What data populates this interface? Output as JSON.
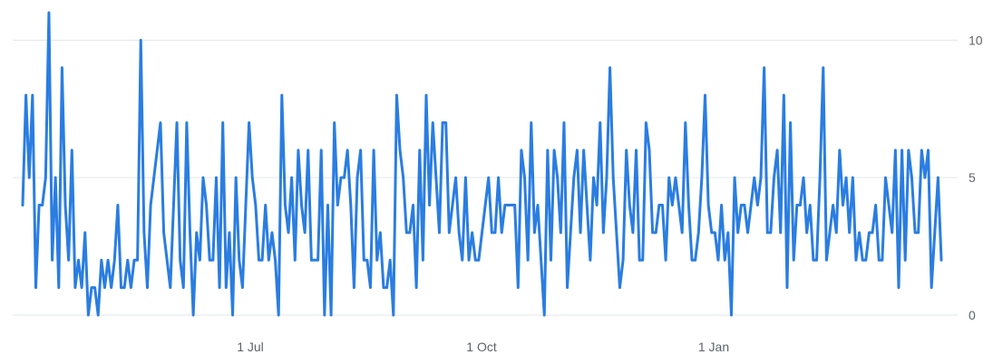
{
  "chart_data": {
    "type": "line",
    "title": "",
    "xlabel": "",
    "ylabel": "",
    "x_tick_labels": [
      "1 Jul",
      "1 Oct",
      "1 Jan"
    ],
    "y_ticks": [
      0,
      5,
      10
    ],
    "ylim": [
      0,
      11
    ],
    "grid": true,
    "y_axis_side": "right",
    "line_color": "#2a7de1",
    "grid_color": "#e3e6ea",
    "series": [
      {
        "values": [
          4,
          8,
          5,
          8,
          1,
          4,
          4,
          5,
          11,
          2,
          5,
          1,
          9,
          4,
          2,
          6,
          1,
          2,
          1,
          3,
          0,
          1,
          1,
          0,
          2,
          1,
          2,
          1,
          2,
          4,
          1,
          1,
          2,
          1,
          2,
          2,
          10,
          3,
          1,
          4,
          5,
          6,
          7,
          3,
          2,
          1,
          4,
          7,
          2,
          1,
          7,
          3,
          0,
          3,
          2,
          5,
          4,
          2,
          2,
          5,
          1,
          7,
          1,
          3,
          0,
          5,
          2,
          1,
          4,
          7,
          5,
          4,
          2,
          2,
          4,
          2,
          3,
          2,
          0,
          8,
          4,
          3,
          5,
          2,
          6,
          4,
          3,
          6,
          2,
          2,
          2,
          6,
          0,
          4,
          0,
          7,
          4,
          5,
          5,
          6,
          4,
          1,
          5,
          6,
          2,
          2,
          1,
          6,
          2,
          3,
          1,
          1,
          2,
          0,
          8,
          6,
          5,
          3,
          3,
          4,
          1,
          6,
          2,
          8,
          4,
          7,
          5,
          3,
          7,
          7,
          3,
          4,
          5,
          3,
          2,
          5,
          2,
          3,
          2,
          2,
          3,
          4,
          5,
          3,
          3,
          5,
          3,
          4,
          4,
          4,
          4,
          1,
          6,
          5,
          2,
          7,
          3,
          4,
          2,
          0,
          6,
          2,
          6,
          5,
          3,
          7,
          1,
          3,
          5,
          6,
          3,
          6,
          4,
          2,
          5,
          4,
          7,
          3,
          5,
          9,
          5,
          3,
          1,
          2,
          6,
          4,
          3,
          6,
          2,
          2,
          7,
          6,
          3,
          3,
          4,
          4,
          2,
          5,
          4,
          5,
          4,
          3,
          7,
          4,
          2,
          2,
          3,
          5,
          8,
          4,
          3,
          3,
          2,
          4,
          2,
          3,
          0,
          5,
          3,
          4,
          4,
          3,
          4,
          5,
          4,
          5,
          9,
          3,
          3,
          5,
          6,
          3,
          8,
          1,
          7,
          2,
          4,
          4,
          5,
          3,
          4,
          2,
          2,
          5,
          9,
          2,
          3,
          4,
          3,
          6,
          4,
          5,
          3,
          5,
          2,
          3,
          2,
          2,
          3,
          3,
          4,
          2,
          2,
          5,
          4,
          3,
          6,
          1,
          6,
          2,
          6,
          5,
          3,
          3,
          6,
          5,
          6,
          1,
          3,
          5,
          2
        ]
      }
    ]
  }
}
